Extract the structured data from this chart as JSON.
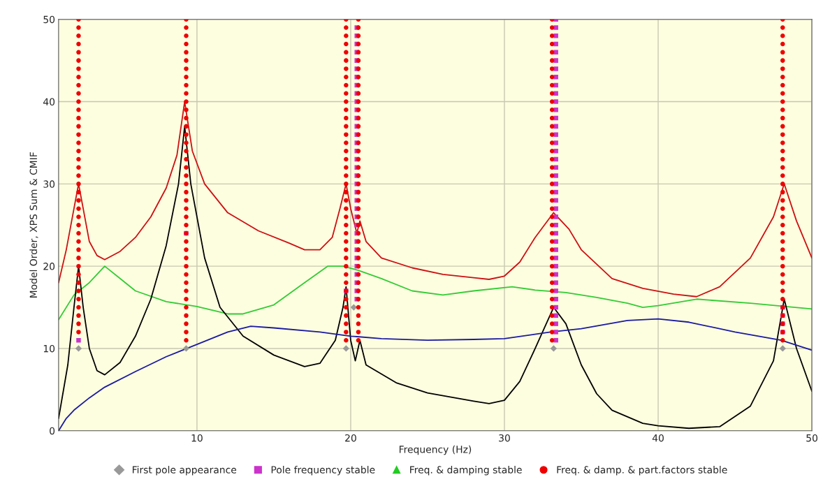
{
  "chart_data": {
    "type": "line",
    "xlabel": "Frequency (Hz)",
    "ylabel": "Model Order, XPS Sum & CMIF",
    "xlim": [
      1,
      50
    ],
    "ylim": [
      0,
      50
    ],
    "xticks": [
      10,
      20,
      30,
      40,
      50
    ],
    "yticks": [
      0,
      10,
      20,
      30,
      40,
      50
    ],
    "grid": true,
    "legend": "bottom",
    "series": [
      {
        "color": "#cc1111",
        "x": [
          1,
          1.5,
          2,
          2.3,
          2.6,
          3,
          3.5,
          4,
          5,
          6,
          7,
          8,
          8.7,
          9.2,
          9.7,
          10.5,
          12,
          14,
          16,
          17,
          18,
          18.8,
          19.3,
          19.7,
          20.0,
          20.4,
          20.6,
          21,
          22,
          24,
          26,
          28,
          29,
          30,
          31,
          32,
          33.2,
          34.2,
          35,
          37,
          39,
          41,
          42.5,
          44,
          46,
          47.5,
          48.2,
          49,
          50
        ],
        "values": [
          18,
          22,
          27,
          30,
          27,
          23,
          21.3,
          20.8,
          21.8,
          23.5,
          26,
          29.5,
          33.5,
          40,
          34,
          30,
          26.5,
          24.3,
          22.8,
          22,
          22,
          23.5,
          27,
          30,
          27,
          24,
          25.5,
          23,
          21,
          19.8,
          19,
          18.6,
          18.4,
          18.8,
          20.5,
          23.5,
          26.5,
          24.5,
          22,
          18.5,
          17.3,
          16.6,
          16.3,
          17.5,
          21,
          26,
          30,
          25.5,
          21
        ]
      },
      {
        "color": "#33cc33",
        "x": [
          1,
          2,
          3,
          4,
          5,
          6,
          8,
          10,
          12,
          13,
          15,
          17,
          18.5,
          19.5,
          20.5,
          22,
          24,
          26,
          28,
          30.5,
          32,
          34,
          36,
          38,
          39,
          40,
          42.5,
          46,
          50
        ],
        "values": [
          13.5,
          16.5,
          18,
          20,
          18.5,
          17,
          15.7,
          15.1,
          14.2,
          14.2,
          15.3,
          18,
          20,
          20,
          19.5,
          18.5,
          17,
          16.5,
          17,
          17.5,
          17.1,
          16.8,
          16.2,
          15.5,
          15,
          15.2,
          16,
          15.5,
          14.8
        ]
      },
      {
        "color": "#000000",
        "x": [
          1,
          1.6,
          2,
          2.3,
          2.6,
          3,
          3.5,
          4,
          5,
          6,
          7,
          8,
          8.8,
          9.2,
          9.6,
          10.5,
          11.5,
          13,
          15,
          17,
          18,
          19,
          19.5,
          19.7,
          20,
          20.3,
          20.6,
          21,
          23,
          25,
          28,
          29,
          30,
          31,
          32,
          33.2,
          34,
          35,
          36,
          37,
          39,
          40,
          42,
          44,
          46,
          47.5,
          48.2,
          49,
          50
        ],
        "values": [
          1.5,
          8,
          15,
          20,
          15,
          10,
          7.3,
          6.8,
          8.3,
          11.5,
          16,
          22.5,
          30,
          37,
          30,
          21,
          15,
          11.5,
          9.2,
          7.8,
          8.2,
          11,
          15,
          17.5,
          11,
          8.5,
          11,
          8,
          5.8,
          4.6,
          3.6,
          3.3,
          3.7,
          6,
          10,
          15,
          13,
          8,
          4.5,
          2.5,
          0.9,
          0.6,
          0.3,
          0.5,
          3,
          8.5,
          16,
          10,
          4.8
        ]
      },
      {
        "color": "#1a1aa0",
        "x": [
          1,
          1.5,
          2,
          3,
          4,
          6,
          8,
          10,
          12,
          13.5,
          15,
          18,
          20,
          22,
          25,
          28,
          30,
          33,
          35,
          38,
          40,
          42,
          45,
          48,
          50
        ],
        "values": [
          0,
          1.5,
          2.5,
          4,
          5.3,
          7.2,
          9,
          10.5,
          12,
          12.7,
          12.5,
          12,
          11.5,
          11.2,
          11,
          11.1,
          11.2,
          12,
          12.4,
          13.4,
          13.6,
          13.2,
          12,
          11,
          9.8
        ]
      },
      {
        "type": "scatter",
        "name": "First pole appearance",
        "marker": "diamond",
        "color": "#999999",
        "x": [
          2.3,
          9.3,
          19.7,
          20.2,
          33.2,
          48.1
        ],
        "values": [
          10,
          10,
          10,
          15,
          10,
          10
        ]
      },
      {
        "type": "scatter",
        "name": "Pole frequency stable",
        "marker": "square",
        "color": "#cc33cc",
        "x": [
          2.3,
          9.3,
          19.7,
          20.4,
          20.4,
          20.4,
          20.4,
          20.4,
          20.4,
          20.4,
          20.4,
          20.4,
          20.4,
          20.4,
          20.4,
          20.4,
          20.4,
          20.4,
          20.4,
          20.4,
          20.4,
          20.4,
          20.4,
          20.4,
          20.4,
          20.4,
          20.4,
          20.4,
          20.4,
          20.4,
          20.4,
          20.4,
          20.4,
          20.4,
          20.4,
          20.4,
          20.4,
          33.35,
          33.35,
          33.35,
          33.35,
          33.35,
          33.35,
          33.35,
          33.35,
          33.35,
          33.35,
          33.35,
          33.35,
          33.35,
          33.35,
          33.35,
          33.35,
          33.35,
          33.35,
          33.35,
          33.35,
          33.35,
          33.35,
          33.35,
          33.35,
          33.35,
          33.35,
          33.35,
          33.35,
          33.35,
          33.35,
          33.35,
          33.35,
          33.35,
          33.35,
          33.35,
          33.35,
          33.35,
          33.35,
          33.35,
          33.35,
          48.1,
          48.1,
          48.1,
          48.1
        ],
        "values": [
          11,
          24,
          17,
          16,
          17,
          18,
          19,
          20,
          21,
          22,
          23,
          24,
          25,
          26,
          27,
          28,
          29,
          30,
          31,
          32,
          33,
          34,
          35,
          36,
          37,
          38,
          39,
          40,
          41,
          42,
          43,
          44,
          45,
          46,
          47,
          48,
          49,
          11,
          12,
          13,
          14,
          15,
          16,
          17,
          18,
          19,
          20,
          21,
          22,
          23,
          24,
          25,
          26,
          27,
          28,
          29,
          30,
          31,
          32,
          33,
          34,
          35,
          36,
          37,
          38,
          39,
          40,
          41,
          42,
          43,
          44,
          45,
          46,
          47,
          48,
          49,
          50,
          12,
          13,
          14,
          15
        ]
      },
      {
        "type": "scatter",
        "name": "Freq. & damping stable",
        "marker": "triangle",
        "color": "#22cc22"
      },
      {
        "type": "scatter",
        "name": "Freq. & damp. & part.factors stable",
        "marker": "circle",
        "color": "#ee0000",
        "x": [
          2.3,
          2.3,
          2.3,
          2.3,
          2.3,
          2.3,
          2.3,
          2.3,
          2.3,
          2.3,
          2.3,
          2.3,
          2.3,
          2.3,
          2.3,
          2.3,
          2.3,
          2.3,
          2.3,
          2.3,
          2.3,
          2.3,
          2.3,
          2.3,
          2.3,
          2.3,
          2.3,
          2.3,
          2.3,
          2.3,
          2.3,
          2.3,
          2.3,
          2.3,
          2.3,
          2.3,
          2.3,
          2.3,
          2.3,
          9.3,
          9.3,
          9.3,
          9.3,
          9.3,
          9.3,
          9.3,
          9.3,
          9.3,
          9.3,
          9.3,
          9.3,
          9.3,
          9.3,
          9.3,
          9.3,
          9.3,
          9.3,
          9.3,
          9.3,
          9.3,
          9.3,
          9.3,
          9.3,
          9.3,
          9.3,
          9.3,
          9.3,
          9.3,
          9.3,
          9.3,
          9.3,
          9.3,
          9.3,
          9.3,
          9.3,
          9.3,
          9.3,
          9.3,
          9.3,
          19.7,
          19.7,
          19.7,
          19.7,
          19.7,
          19.7,
          19.7,
          19.7,
          19.7,
          19.7,
          19.7,
          19.7,
          19.7,
          19.7,
          19.7,
          19.7,
          19.7,
          19.7,
          19.7,
          19.7,
          19.7,
          19.7,
          19.7,
          19.7,
          19.7,
          19.7,
          19.7,
          19.7,
          19.7,
          19.7,
          19.7,
          19.7,
          19.7,
          19.7,
          19.7,
          19.7,
          19.7,
          19.7,
          19.7,
          19.7,
          20.5,
          20.5,
          20.5,
          20.5,
          20.5,
          20.5,
          20.5,
          20.5,
          20.5,
          20.5,
          20.5,
          20.5,
          20.5,
          20.5,
          20.5,
          20.5,
          20.5,
          20.5,
          20.5,
          20.5,
          20.5,
          20.5,
          20.5,
          20.5,
          20.5,
          20.5,
          20.5,
          20.5,
          20.5,
          20.5,
          20.5,
          20.5,
          20.5,
          20.5,
          20.5,
          20.5,
          20.5,
          20.5,
          20.5,
          20.5,
          33.1,
          33.1,
          33.1,
          33.1,
          33.1,
          33.1,
          33.1,
          33.1,
          33.1,
          33.1,
          33.1,
          33.1,
          33.1,
          33.1,
          33.1,
          33.1,
          33.1,
          33.1,
          33.1,
          33.1,
          33.1,
          33.1,
          33.1,
          33.1,
          33.1,
          33.1,
          33.1,
          33.1,
          33.1,
          33.1,
          33.1,
          33.1,
          33.1,
          33.1,
          33.1,
          33.1,
          33.1,
          33.1,
          33.1,
          33.1,
          48.1,
          48.1,
          48.1,
          48.1,
          48.1,
          48.1,
          48.1,
          48.1,
          48.1,
          48.1,
          48.1,
          48.1,
          48.1,
          48.1,
          48.1,
          48.1,
          48.1,
          48.1,
          48.1,
          48.1,
          48.1,
          48.1,
          48.1,
          48.1,
          48.1,
          48.1,
          48.1,
          48.1,
          48.1,
          48.1,
          48.1,
          48.1,
          48.1,
          48.1,
          48.1,
          48.1,
          48.1,
          48.1,
          48.1,
          48.1
        ],
        "values": [
          12,
          13,
          14,
          15,
          16,
          17,
          18,
          19,
          20,
          21,
          22,
          23,
          24,
          25,
          26,
          27,
          28,
          29,
          30,
          31,
          32,
          33,
          34,
          35,
          36,
          37,
          38,
          39,
          40,
          41,
          42,
          43,
          44,
          45,
          46,
          47,
          48,
          49,
          50,
          11,
          12,
          13,
          14,
          15,
          16,
          17,
          18,
          19,
          20,
          21,
          22,
          23,
          24,
          25,
          26,
          27,
          28,
          29,
          30,
          31,
          32,
          33,
          34,
          35,
          36,
          37,
          38,
          39,
          40,
          41,
          42,
          43,
          44,
          45,
          46,
          47,
          48,
          49,
          50,
          11,
          12,
          13,
          14,
          15,
          16,
          17,
          18,
          19,
          20,
          21,
          22,
          23,
          24,
          25,
          26,
          27,
          28,
          29,
          30,
          31,
          32,
          33,
          34,
          35,
          36,
          37,
          38,
          39,
          40,
          41,
          42,
          43,
          44,
          45,
          46,
          47,
          48,
          49,
          50,
          11,
          12,
          13,
          14,
          15,
          16,
          17,
          18,
          19,
          20,
          21,
          22,
          23,
          24,
          25,
          26,
          27,
          28,
          29,
          30,
          31,
          32,
          33,
          34,
          35,
          36,
          37,
          38,
          39,
          40,
          41,
          42,
          43,
          44,
          45,
          46,
          47,
          48,
          49,
          50,
          11,
          12,
          13,
          14,
          15,
          16,
          17,
          18,
          19,
          20,
          21,
          22,
          23,
          24,
          25,
          26,
          27,
          28,
          29,
          30,
          31,
          32,
          33,
          34,
          35,
          36,
          37,
          38,
          39,
          40,
          41,
          42,
          43,
          44,
          45,
          46,
          47,
          48,
          49,
          50,
          11,
          12,
          13,
          14,
          15,
          16,
          17,
          18,
          19,
          20,
          21,
          22,
          23,
          24,
          25,
          26,
          27,
          28,
          29,
          30,
          31,
          32,
          33,
          34,
          35,
          36,
          37,
          38,
          39,
          40,
          41,
          42,
          43,
          44,
          45,
          46,
          47,
          48,
          49,
          50
        ]
      }
    ]
  }
}
